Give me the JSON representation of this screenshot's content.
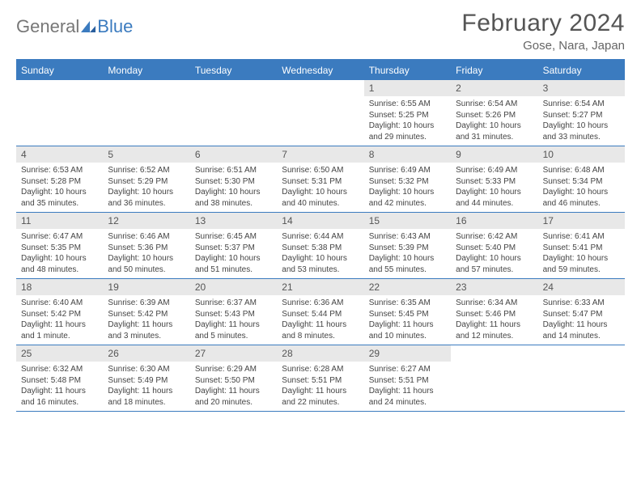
{
  "logo": {
    "text_general": "General",
    "text_blue": "Blue"
  },
  "title": "February 2024",
  "location": "Gose, Nara, Japan",
  "colors": {
    "header_bg": "#3b7bbf",
    "dayrow_bg": "#e8e8e8",
    "text": "#444",
    "title_color": "#555"
  },
  "day_headers": [
    "Sunday",
    "Monday",
    "Tuesday",
    "Wednesday",
    "Thursday",
    "Friday",
    "Saturday"
  ],
  "lead_blanks": 4,
  "days": [
    {
      "n": "1",
      "sr": "Sunrise: 6:55 AM",
      "ss": "Sunset: 5:25 PM",
      "dl": "Daylight: 10 hours and 29 minutes."
    },
    {
      "n": "2",
      "sr": "Sunrise: 6:54 AM",
      "ss": "Sunset: 5:26 PM",
      "dl": "Daylight: 10 hours and 31 minutes."
    },
    {
      "n": "3",
      "sr": "Sunrise: 6:54 AM",
      "ss": "Sunset: 5:27 PM",
      "dl": "Daylight: 10 hours and 33 minutes."
    },
    {
      "n": "4",
      "sr": "Sunrise: 6:53 AM",
      "ss": "Sunset: 5:28 PM",
      "dl": "Daylight: 10 hours and 35 minutes."
    },
    {
      "n": "5",
      "sr": "Sunrise: 6:52 AM",
      "ss": "Sunset: 5:29 PM",
      "dl": "Daylight: 10 hours and 36 minutes."
    },
    {
      "n": "6",
      "sr": "Sunrise: 6:51 AM",
      "ss": "Sunset: 5:30 PM",
      "dl": "Daylight: 10 hours and 38 minutes."
    },
    {
      "n": "7",
      "sr": "Sunrise: 6:50 AM",
      "ss": "Sunset: 5:31 PM",
      "dl": "Daylight: 10 hours and 40 minutes."
    },
    {
      "n": "8",
      "sr": "Sunrise: 6:49 AM",
      "ss": "Sunset: 5:32 PM",
      "dl": "Daylight: 10 hours and 42 minutes."
    },
    {
      "n": "9",
      "sr": "Sunrise: 6:49 AM",
      "ss": "Sunset: 5:33 PM",
      "dl": "Daylight: 10 hours and 44 minutes."
    },
    {
      "n": "10",
      "sr": "Sunrise: 6:48 AM",
      "ss": "Sunset: 5:34 PM",
      "dl": "Daylight: 10 hours and 46 minutes."
    },
    {
      "n": "11",
      "sr": "Sunrise: 6:47 AM",
      "ss": "Sunset: 5:35 PM",
      "dl": "Daylight: 10 hours and 48 minutes."
    },
    {
      "n": "12",
      "sr": "Sunrise: 6:46 AM",
      "ss": "Sunset: 5:36 PM",
      "dl": "Daylight: 10 hours and 50 minutes."
    },
    {
      "n": "13",
      "sr": "Sunrise: 6:45 AM",
      "ss": "Sunset: 5:37 PM",
      "dl": "Daylight: 10 hours and 51 minutes."
    },
    {
      "n": "14",
      "sr": "Sunrise: 6:44 AM",
      "ss": "Sunset: 5:38 PM",
      "dl": "Daylight: 10 hours and 53 minutes."
    },
    {
      "n": "15",
      "sr": "Sunrise: 6:43 AM",
      "ss": "Sunset: 5:39 PM",
      "dl": "Daylight: 10 hours and 55 minutes."
    },
    {
      "n": "16",
      "sr": "Sunrise: 6:42 AM",
      "ss": "Sunset: 5:40 PM",
      "dl": "Daylight: 10 hours and 57 minutes."
    },
    {
      "n": "17",
      "sr": "Sunrise: 6:41 AM",
      "ss": "Sunset: 5:41 PM",
      "dl": "Daylight: 10 hours and 59 minutes."
    },
    {
      "n": "18",
      "sr": "Sunrise: 6:40 AM",
      "ss": "Sunset: 5:42 PM",
      "dl": "Daylight: 11 hours and 1 minute."
    },
    {
      "n": "19",
      "sr": "Sunrise: 6:39 AM",
      "ss": "Sunset: 5:42 PM",
      "dl": "Daylight: 11 hours and 3 minutes."
    },
    {
      "n": "20",
      "sr": "Sunrise: 6:37 AM",
      "ss": "Sunset: 5:43 PM",
      "dl": "Daylight: 11 hours and 5 minutes."
    },
    {
      "n": "21",
      "sr": "Sunrise: 6:36 AM",
      "ss": "Sunset: 5:44 PM",
      "dl": "Daylight: 11 hours and 8 minutes."
    },
    {
      "n": "22",
      "sr": "Sunrise: 6:35 AM",
      "ss": "Sunset: 5:45 PM",
      "dl": "Daylight: 11 hours and 10 minutes."
    },
    {
      "n": "23",
      "sr": "Sunrise: 6:34 AM",
      "ss": "Sunset: 5:46 PM",
      "dl": "Daylight: 11 hours and 12 minutes."
    },
    {
      "n": "24",
      "sr": "Sunrise: 6:33 AM",
      "ss": "Sunset: 5:47 PM",
      "dl": "Daylight: 11 hours and 14 minutes."
    },
    {
      "n": "25",
      "sr": "Sunrise: 6:32 AM",
      "ss": "Sunset: 5:48 PM",
      "dl": "Daylight: 11 hours and 16 minutes."
    },
    {
      "n": "26",
      "sr": "Sunrise: 6:30 AM",
      "ss": "Sunset: 5:49 PM",
      "dl": "Daylight: 11 hours and 18 minutes."
    },
    {
      "n": "27",
      "sr": "Sunrise: 6:29 AM",
      "ss": "Sunset: 5:50 PM",
      "dl": "Daylight: 11 hours and 20 minutes."
    },
    {
      "n": "28",
      "sr": "Sunrise: 6:28 AM",
      "ss": "Sunset: 5:51 PM",
      "dl": "Daylight: 11 hours and 22 minutes."
    },
    {
      "n": "29",
      "sr": "Sunrise: 6:27 AM",
      "ss": "Sunset: 5:51 PM",
      "dl": "Daylight: 11 hours and 24 minutes."
    }
  ]
}
